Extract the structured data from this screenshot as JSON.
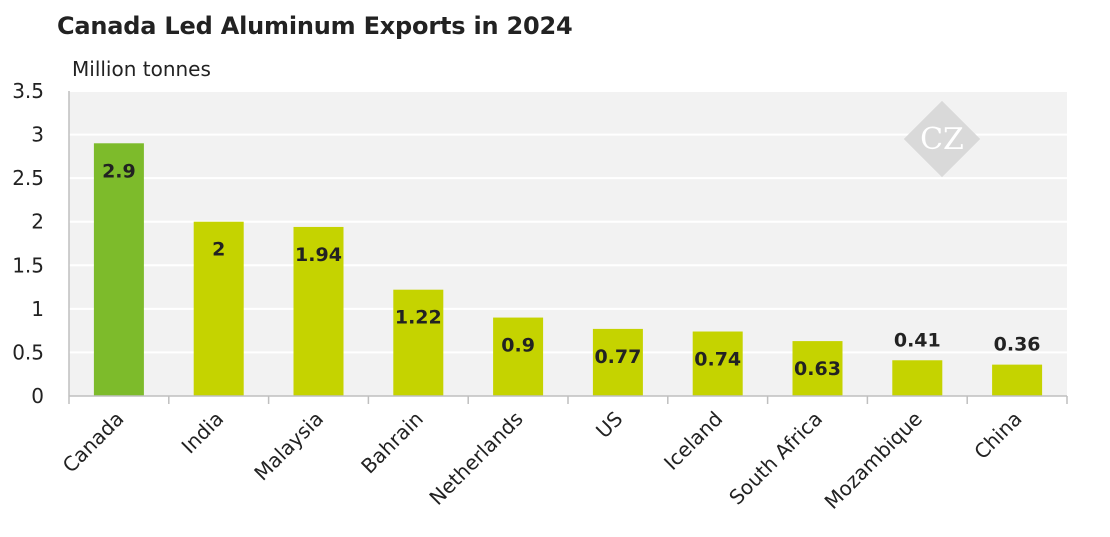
{
  "title": "Canada Led Aluminum Exports in 2024",
  "chart_data": {
    "type": "bar",
    "title": "Canada Led Aluminum Exports in 2024",
    "ylabel": "Million tonnes",
    "xlabel": "",
    "ylim": [
      0,
      3.5
    ],
    "yticks": [
      "0",
      "0.5",
      "1",
      "1.5",
      "2",
      "2.5",
      "3",
      "3.5"
    ],
    "grid": true,
    "categories": [
      "Canada",
      "India",
      "Malaysia",
      "Bahrain",
      "Netherlands",
      "US",
      "Iceland",
      "South Africa",
      "Mozambique",
      "China"
    ],
    "values": [
      2.9,
      2,
      1.94,
      1.22,
      0.9,
      0.77,
      0.74,
      0.63,
      0.41,
      0.36
    ],
    "value_labels": [
      "2.9",
      "2",
      "1.94",
      "1.22",
      "0.9",
      "0.77",
      "0.74",
      "0.63",
      "0.41",
      "0.36"
    ],
    "highlight": [
      "Canada"
    ]
  },
  "colors": {
    "highlight_bar": "#7dbb2b",
    "bar": "#c5d300",
    "plot_background": "#f2f2f2",
    "gridline": "#ffffff",
    "text": "#222222",
    "axis": "#bfbfbf",
    "watermark": "#d9d9d9"
  },
  "watermark": {
    "icon": "cz-logo-icon",
    "text": "CZ"
  }
}
